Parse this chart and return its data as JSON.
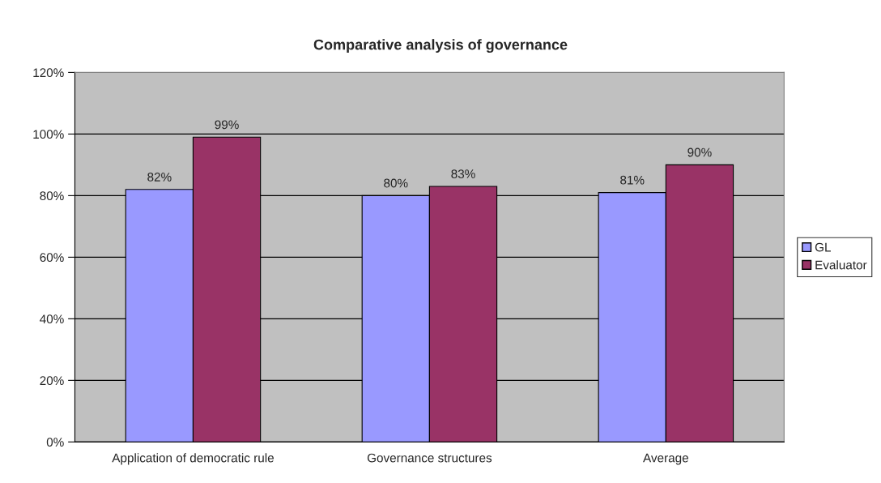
{
  "chart_data": {
    "type": "bar",
    "title": "Comparative analysis of governance",
    "categories": [
      "Application of democratic rule",
      "Governance structures",
      "Average"
    ],
    "series": [
      {
        "name": "GL",
        "color": "#9999ff",
        "values": [
          82,
          80,
          81
        ],
        "value_labels": [
          "82%",
          "80%",
          "81%"
        ]
      },
      {
        "name": "Evaluator",
        "color": "#993366",
        "values": [
          99,
          83,
          90
        ],
        "value_labels": [
          "99%",
          "83%",
          "90%"
        ]
      }
    ],
    "ylim": [
      0,
      120
    ],
    "yticks": [
      {
        "value": 0,
        "label": "0%"
      },
      {
        "value": 20,
        "label": "20%"
      },
      {
        "value": 40,
        "label": "40%"
      },
      {
        "value": 60,
        "label": "60%"
      },
      {
        "value": 80,
        "label": "80%"
      },
      {
        "value": 100,
        "label": "100%"
      },
      {
        "value": 120,
        "label": "120%"
      }
    ],
    "grid": "y",
    "legend": "right"
  }
}
